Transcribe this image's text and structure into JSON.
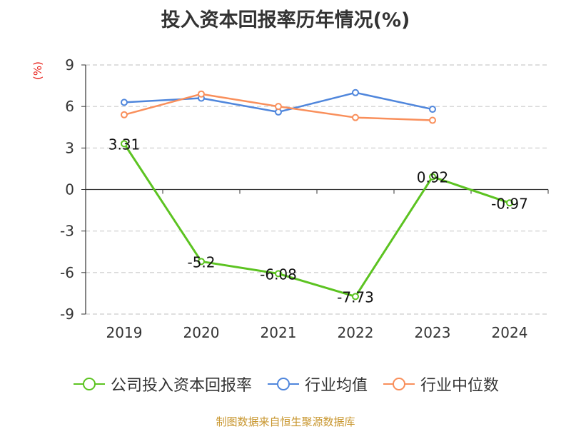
{
  "chart_data": {
    "type": "line",
    "title": "投入资本回报率历年情况(%)",
    "unit_label": "(%)",
    "categories": [
      "2019",
      "2020",
      "2021",
      "2022",
      "2023",
      "2024"
    ],
    "y_ticks": [
      "9",
      "6",
      "3",
      "0",
      "-3",
      "-6",
      "-9"
    ],
    "ylim": [
      -9,
      9
    ],
    "grid": "horizontal dashed",
    "legend_position": "bottom",
    "series": [
      {
        "name": "公司投入资本回报率",
        "color": "#5cc321",
        "values": [
          3.31,
          -5.2,
          -6.08,
          -7.73,
          0.92,
          -0.97
        ],
        "data_labels": [
          "3.31",
          "-5.2",
          "-6.08",
          "-7.73",
          "0.92",
          "-0.97"
        ]
      },
      {
        "name": "行业均值",
        "color": "#4f86dc",
        "values": [
          6.3,
          6.6,
          5.6,
          7.0,
          5.8,
          null
        ]
      },
      {
        "name": "行业中位数",
        "color": "#f98f5b",
        "values": [
          5.4,
          6.9,
          6.0,
          5.2,
          5.0,
          null
        ]
      }
    ]
  },
  "footer": "制图数据来自恒生聚源数据库"
}
